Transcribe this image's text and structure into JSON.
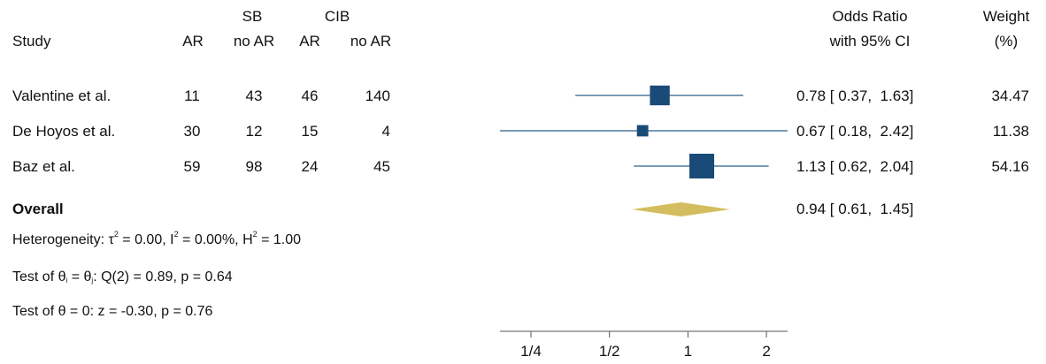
{
  "chart_data": {
    "type": "forest",
    "header": {
      "study": "Study",
      "group1": "SB",
      "group2": "CIB",
      "col_ar": "AR",
      "col_noar": "no AR",
      "effect_line1": "Odds Ratio",
      "effect_line2": "with 95% CI",
      "weight_line1": "Weight",
      "weight_line2": "(%)"
    },
    "studies": [
      {
        "name": "Valentine et al.",
        "sb_ar": "11",
        "sb_noar": "43",
        "cib_ar": "46",
        "cib_noar": "140",
        "or": 0.78,
        "lo": 0.37,
        "hi": 1.63,
        "ci_text": "0.78 [ 0.37,  1.63]",
        "weight": 34.47,
        "weight_text": "34.47"
      },
      {
        "name": "De Hoyos et al.",
        "sb_ar": "30",
        "sb_noar": "12",
        "cib_ar": "15",
        "cib_noar": "4",
        "or": 0.67,
        "lo": 0.18,
        "hi": 2.42,
        "ci_text": "0.67 [ 0.18,  2.42]",
        "weight": 11.38,
        "weight_text": "11.38"
      },
      {
        "name": "Baz et al.",
        "sb_ar": "59",
        "sb_noar": "98",
        "cib_ar": "24",
        "cib_noar": "45",
        "or": 1.13,
        "lo": 0.62,
        "hi": 2.04,
        "ci_text": "1.13 [ 0.62,  2.04]",
        "weight": 54.16,
        "weight_text": "54.16"
      }
    ],
    "overall": {
      "label": "Overall",
      "or": 0.94,
      "lo": 0.61,
      "hi": 1.45,
      "ci_text": "0.94 [ 0.61,  1.45]"
    },
    "heterogeneity": {
      "prefix": "Heterogeneity: τ",
      "tau2": "2",
      "mid1": " = 0.00, I",
      "i2": "2",
      "mid2": " = 0.00%, H",
      "h2": "2",
      "tail": " = 1.00"
    },
    "test_q": {
      "prefix": "Test of θ",
      "sub_i": "i",
      "eq": " = θ",
      "sub_j": "j",
      "tail": ": Q(2) = 0.89, p = 0.64"
    },
    "test_z": "Test of θ = 0: z = -0.30, p = 0.76",
    "x_axis": {
      "scale": "log",
      "ticks": [
        0.25,
        0.5,
        1,
        2
      ],
      "tick_labels": [
        "1/4",
        "1/2",
        "1",
        "2"
      ]
    },
    "colors": {
      "marker": "#1a4a78",
      "ci_line": "#2a5f8a",
      "diamond": "#d4bd5e",
      "axis": "#555555"
    }
  }
}
